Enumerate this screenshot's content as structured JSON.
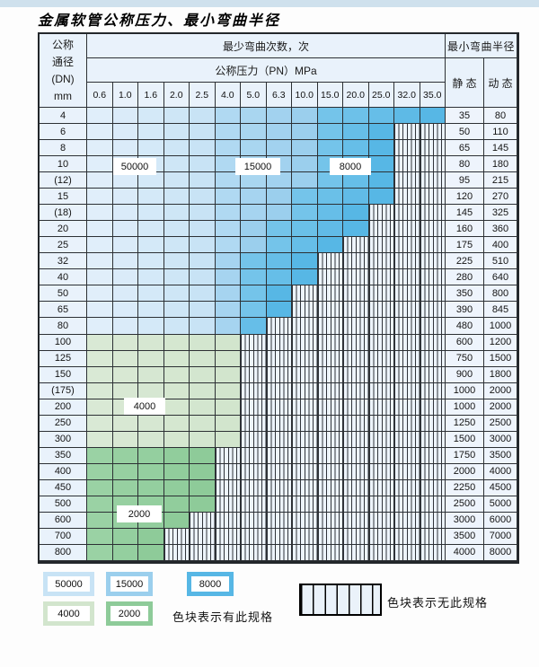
{
  "page": {
    "title": "金属软管公称压力、最小弯曲半径"
  },
  "table": {
    "header": {
      "dn_lines": [
        "公称",
        "通径",
        "(DN)",
        "mm"
      ],
      "cycles_title": "最少弯曲次数，次",
      "pressure_title": "公称压力（PN）MPa",
      "pressures": [
        "0.6",
        "1.0",
        "1.6",
        "2.0",
        "2.5",
        "4.0",
        "5.0",
        "6.3",
        "10.0",
        "15.0",
        "20.0",
        "25.0",
        "32.0",
        "35.0"
      ],
      "radius_title": "最小弯曲半径",
      "static_label": "静 态",
      "dynamic_label": "动 态"
    },
    "cell_codes": {
      "L": "50000",
      "M": "15000",
      "D": "8000",
      "G": "4000",
      "g": "2000",
      "x": "none"
    },
    "cycle_colors": {
      "50000": {
        "from": "#e0eefa",
        "to": "#c8e3f5"
      },
      "15000": {
        "from": "#b0d9f2",
        "to": "#9bcfed"
      },
      "8000": {
        "from": "#74c4ea",
        "to": "#57b7e5"
      },
      "4000": {
        "from": "#d9e9d5",
        "to": "#d2e5cd"
      },
      "2000": {
        "from": "#9ad2a4",
        "to": "#8ecb99"
      }
    },
    "rows": [
      {
        "dn": "4",
        "cells": "LLLLLMMMMDDDDD",
        "static": "35",
        "dynamic": "80"
      },
      {
        "dn": "6",
        "cells": "LLLLLMMMMDDDxx",
        "static": "50",
        "dynamic": "110"
      },
      {
        "dn": "8",
        "cells": "LLLLLMMMMDDDxx",
        "static": "65",
        "dynamic": "145"
      },
      {
        "dn": "10",
        "cells": "LLLLLMMMMDDDxx",
        "static": "80",
        "dynamic": "180"
      },
      {
        "dn": "(12)",
        "cells": "LLLLLMMMMDDDxx",
        "static": "95",
        "dynamic": "215"
      },
      {
        "dn": "15",
        "cells": "LLLLLMMMDDDDxx",
        "static": "120",
        "dynamic": "270"
      },
      {
        "dn": "(18)",
        "cells": "LLLLLMMMDDDxxx",
        "static": "145",
        "dynamic": "325"
      },
      {
        "dn": "20",
        "cells": "LLLLLMMDDDDxxx",
        "static": "160",
        "dynamic": "360"
      },
      {
        "dn": "25",
        "cells": "LLLLLMMDDDxxxx",
        "static": "175",
        "dynamic": "400"
      },
      {
        "dn": "32",
        "cells": "LLLLLMDDDxxxxx",
        "static": "225",
        "dynamic": "510"
      },
      {
        "dn": "40",
        "cells": "LLLLLMDDDxxxxx",
        "static": "280",
        "dynamic": "640"
      },
      {
        "dn": "50",
        "cells": "LLLLLMDDxxxxxx",
        "static": "350",
        "dynamic": "800"
      },
      {
        "dn": "65",
        "cells": "LLLLLMDDxxxxxx",
        "static": "390",
        "dynamic": "845"
      },
      {
        "dn": "80",
        "cells": "LLLLLMDxxxxxxx",
        "static": "480",
        "dynamic": "1000"
      },
      {
        "dn": "100",
        "cells": "GGGGGGxxxxxxxx",
        "static": "600",
        "dynamic": "1200"
      },
      {
        "dn": "125",
        "cells": "GGGGGGxxxxxxxx",
        "static": "750",
        "dynamic": "1500"
      },
      {
        "dn": "150",
        "cells": "GGGGGGxxxxxxxx",
        "static": "900",
        "dynamic": "1800"
      },
      {
        "dn": "(175)",
        "cells": "GGGGGGxxxxxxxx",
        "static": "1000",
        "dynamic": "2000"
      },
      {
        "dn": "200",
        "cells": "GGGGGGxxxxxxxx",
        "static": "1000",
        "dynamic": "2000"
      },
      {
        "dn": "250",
        "cells": "GGGGGGxxxxxxxx",
        "static": "1250",
        "dynamic": "2500"
      },
      {
        "dn": "300",
        "cells": "GGGGGGxxxxxxxx",
        "static": "1500",
        "dynamic": "3000"
      },
      {
        "dn": "350",
        "cells": "gggggxxxxxxxxx",
        "static": "1750",
        "dynamic": "3500"
      },
      {
        "dn": "400",
        "cells": "gggggxxxxxxxxx",
        "static": "2000",
        "dynamic": "4000"
      },
      {
        "dn": "450",
        "cells": "gggggxxxxxxxxx",
        "static": "2250",
        "dynamic": "4500"
      },
      {
        "dn": "500",
        "cells": "gggggxxxxxxxxx",
        "static": "2500",
        "dynamic": "5000"
      },
      {
        "dn": "600",
        "cells": "ggggxxxxxxxxxx",
        "static": "3000",
        "dynamic": "6000"
      },
      {
        "dn": "700",
        "cells": "gggxxxxxxxxxxx",
        "static": "3500",
        "dynamic": "7000"
      },
      {
        "dn": "800",
        "cells": "gggxxxxxxxxxxx",
        "static": "4000",
        "dynamic": "8000"
      }
    ]
  },
  "overlays": [
    "50000",
    "15000",
    "8000",
    "4000",
    "2000"
  ],
  "legend": {
    "row1": [
      {
        "label": "50000",
        "key": "50000"
      },
      {
        "label": "15000",
        "key": "15000"
      },
      {
        "label": "8000",
        "key": "8000"
      }
    ],
    "row2": [
      {
        "label": "4000",
        "key": "4000"
      },
      {
        "label": "2000",
        "key": "2000"
      }
    ],
    "has_spec_text": "色块表示有此规格",
    "no_spec_text": "色块表示无此规格"
  }
}
